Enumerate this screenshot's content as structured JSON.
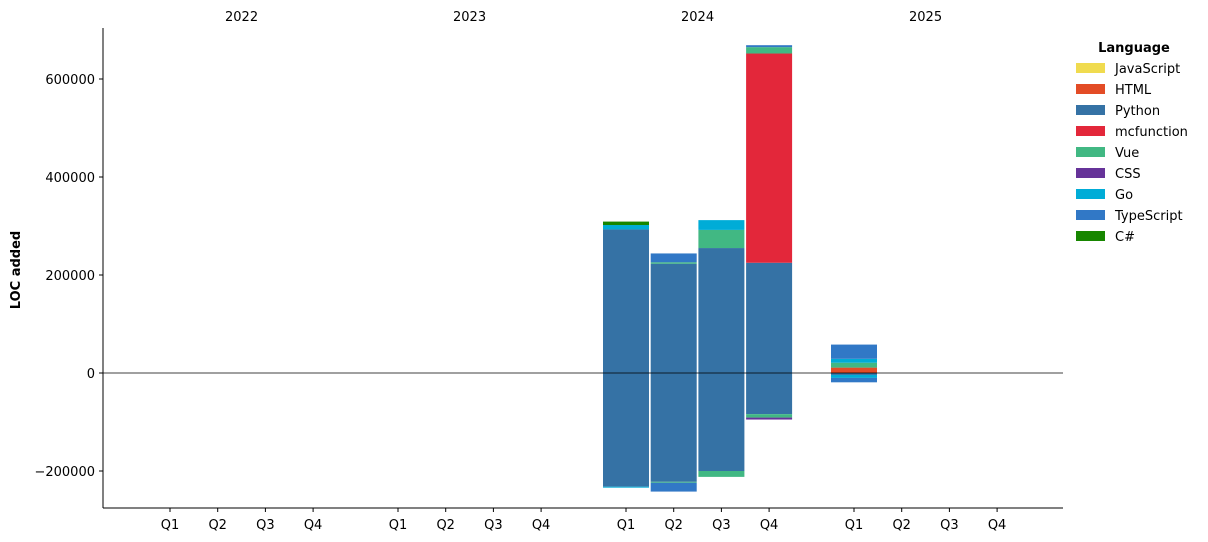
{
  "chart_data": {
    "type": "bar",
    "stacked": true,
    "ylabel": "LOC added",
    "xlabel": "",
    "title": "",
    "ylim": [
      -275000,
      705000
    ],
    "yticks": [
      -200000,
      0,
      200000,
      400000,
      600000
    ],
    "ytick_labels": [
      "−200000",
      "0",
      "200000",
      "400000",
      "600000"
    ],
    "years": [
      "2022",
      "2023",
      "2024",
      "2025"
    ],
    "quarters": [
      "Q1",
      "Q2",
      "Q3",
      "Q4"
    ],
    "zero_line": true,
    "legend": {
      "title": "Language",
      "placement": "right",
      "entries": [
        "JavaScript",
        "HTML",
        "Python",
        "mcfunction",
        "Vue",
        "CSS",
        "Go",
        "TypeScript",
        "C#"
      ]
    },
    "colors": {
      "JavaScript": "#f0db4f",
      "HTML": "#e34c26",
      "Python": "#3572a5",
      "mcfunction": "#e3273a",
      "Vue": "#41b883",
      "CSS": "#663399",
      "Go": "#00acd7",
      "TypeScript": "#3178c6",
      "C#": "#178600"
    },
    "bars": [
      {
        "year": "2024",
        "quarter": "Q1",
        "positive": [
          [
            "Python",
            293000
          ],
          [
            "Go",
            9000
          ],
          [
            "C#",
            7000
          ]
        ],
        "negative": [
          [
            "Python",
            -232000
          ],
          [
            "Go",
            -2000
          ]
        ]
      },
      {
        "year": "2024",
        "quarter": "Q2",
        "positive": [
          [
            "Python",
            223000
          ],
          [
            "Vue",
            3000
          ],
          [
            "TypeScript",
            18000
          ]
        ],
        "negative": [
          [
            "Python",
            -222000
          ],
          [
            "Vue",
            -2000
          ],
          [
            "TypeScript",
            -18000
          ]
        ]
      },
      {
        "year": "2024",
        "quarter": "Q3",
        "positive": [
          [
            "Python",
            255000
          ],
          [
            "Vue",
            37000
          ],
          [
            "Go",
            20000
          ]
        ],
        "negative": [
          [
            "Python",
            -200000
          ],
          [
            "Vue",
            -12000
          ]
        ]
      },
      {
        "year": "2024",
        "quarter": "Q4",
        "positive": [
          [
            "Python",
            225000
          ],
          [
            "mcfunction",
            427000
          ],
          [
            "Vue",
            13000
          ],
          [
            "TypeScript",
            4000
          ]
        ],
        "negative": [
          [
            "Python",
            -84000
          ],
          [
            "Vue",
            -7000
          ],
          [
            "CSS",
            -4000
          ]
        ]
      },
      {
        "year": "2025",
        "quarter": "Q1",
        "positive": [
          [
            "HTML",
            11000
          ],
          [
            "Vue",
            10000
          ],
          [
            "Go",
            8000
          ],
          [
            "TypeScript",
            29000
          ]
        ],
        "negative": [
          [
            "Python",
            -4000
          ],
          [
            "Go",
            -6000
          ],
          [
            "TypeScript",
            -9000
          ]
        ]
      }
    ]
  }
}
